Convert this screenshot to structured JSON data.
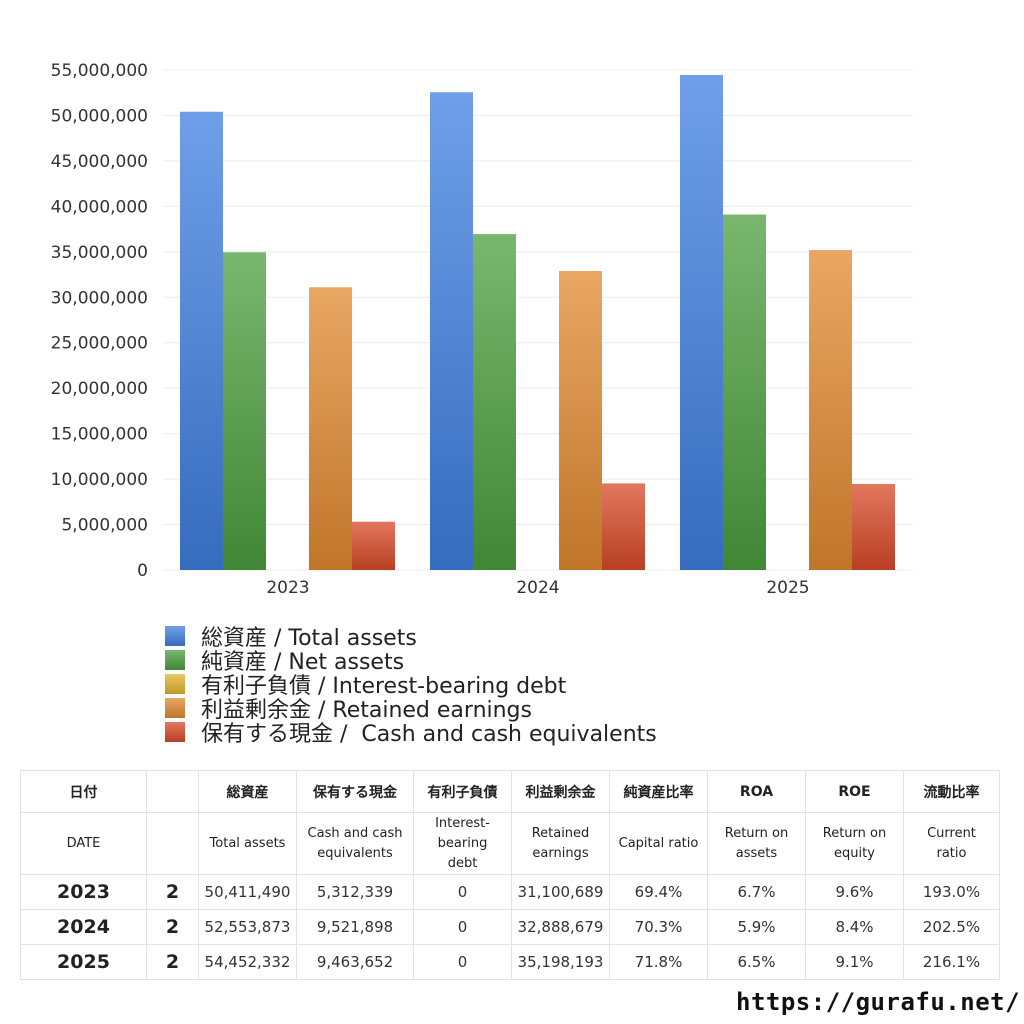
{
  "chart_data": {
    "type": "bar",
    "categories": [
      "2023",
      "2024",
      "2025"
    ],
    "series": [
      {
        "name": "総資産 / Total assets",
        "color": "#3f7fe0",
        "values": [
          50411490,
          52553873,
          54452332
        ]
      },
      {
        "name": "純資産 / Net assets",
        "color": "#4c9f3f",
        "values": [
          34950000,
          36950000,
          39100000
        ]
      },
      {
        "name": "有利子負債 / Interest-bearing debt",
        "color": "#e0b42e",
        "values": [
          0,
          0,
          0
        ]
      },
      {
        "name": "利益剰余金 / Retained earnings",
        "color": "#e28a30",
        "values": [
          31100689,
          32888679,
          35198193
        ]
      },
      {
        "name": "保有する現金 /  Cash and cash equivalents",
        "color": "#d84a28",
        "values": [
          5312339,
          9521898,
          9463652
        ]
      }
    ],
    "ylim": [
      0,
      55000000
    ],
    "yticks": [
      "0",
      "5,000,000",
      "10,000,000",
      "15,000,000",
      "20,000,000",
      "25,000,000",
      "30,000,000",
      "35,000,000",
      "40,000,000",
      "45,000,000",
      "50,000,000",
      "55,000,000"
    ],
    "grid": true,
    "legend_position": "bottom"
  },
  "table": {
    "header_jp": [
      "日付",
      "",
      "総資産",
      "保有する現金",
      "有利子負債",
      "利益剰余金",
      "純資産比率",
      "ROA",
      "ROE",
      "流動比率"
    ],
    "header_en": [
      "DATE",
      "",
      "Total assets",
      "Cash and cash\nequivalents",
      "Interest-\nbearing\ndebt",
      "Retained\nearnings",
      "Capital ratio",
      "Return on\nassets",
      "Return on\nequity",
      "Current\nratio"
    ],
    "rows": [
      [
        "2023",
        "2",
        "50,411,490",
        "5,312,339",
        "0",
        "31,100,689",
        "69.4%",
        "6.7%",
        "9.6%",
        "193.0%"
      ],
      [
        "2024",
        "2",
        "52,553,873",
        "9,521,898",
        "0",
        "32,888,679",
        "70.3%",
        "5.9%",
        "8.4%",
        "202.5%"
      ],
      [
        "2025",
        "2",
        "54,452,332",
        "9,463,652",
        "0",
        "35,198,193",
        "71.8%",
        "6.5%",
        "9.1%",
        "216.1%"
      ]
    ]
  },
  "source": "https://gurafu.net/"
}
